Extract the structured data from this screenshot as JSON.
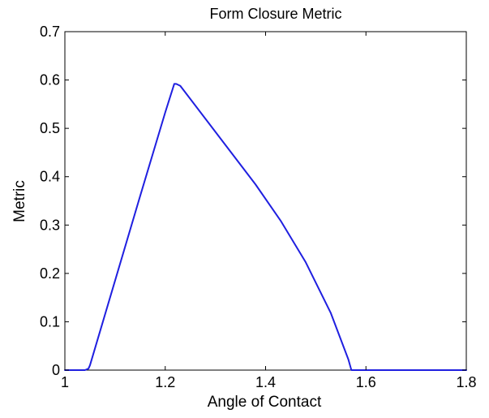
{
  "chart_data": {
    "type": "line",
    "title": "Form Closure Metric",
    "xlabel": "Angle of Contact",
    "ylabel": "Metric",
    "xlim": [
      1,
      1.8
    ],
    "ylim": [
      0,
      0.7
    ],
    "xticks": [
      1,
      1.2,
      1.4,
      1.6,
      1.8
    ],
    "xtick_labels": [
      "1",
      "1.2",
      "1.4",
      "1.6",
      "1.8"
    ],
    "yticks": [
      0,
      0.1,
      0.2,
      0.3,
      0.4,
      0.5,
      0.6,
      0.7
    ],
    "ytick_labels": [
      "0",
      "0.1",
      "0.2",
      "0.3",
      "0.4",
      "0.5",
      "0.6",
      "0.7"
    ],
    "grid": false,
    "series": [
      {
        "color": "#1f1fe0",
        "x": [
          1.0,
          1.04,
          1.047,
          1.05,
          1.1,
          1.15,
          1.2,
          1.218,
          1.222,
          1.23,
          1.28,
          1.33,
          1.38,
          1.43,
          1.48,
          1.53,
          1.565,
          1.571,
          1.58,
          1.8
        ],
        "y": [
          0,
          0,
          0.003,
          0.01,
          0.185,
          0.36,
          0.533,
          0.592,
          0.592,
          0.588,
          0.52,
          0.452,
          0.384,
          0.309,
          0.223,
          0.118,
          0.022,
          0.0,
          0,
          0
        ]
      }
    ]
  }
}
